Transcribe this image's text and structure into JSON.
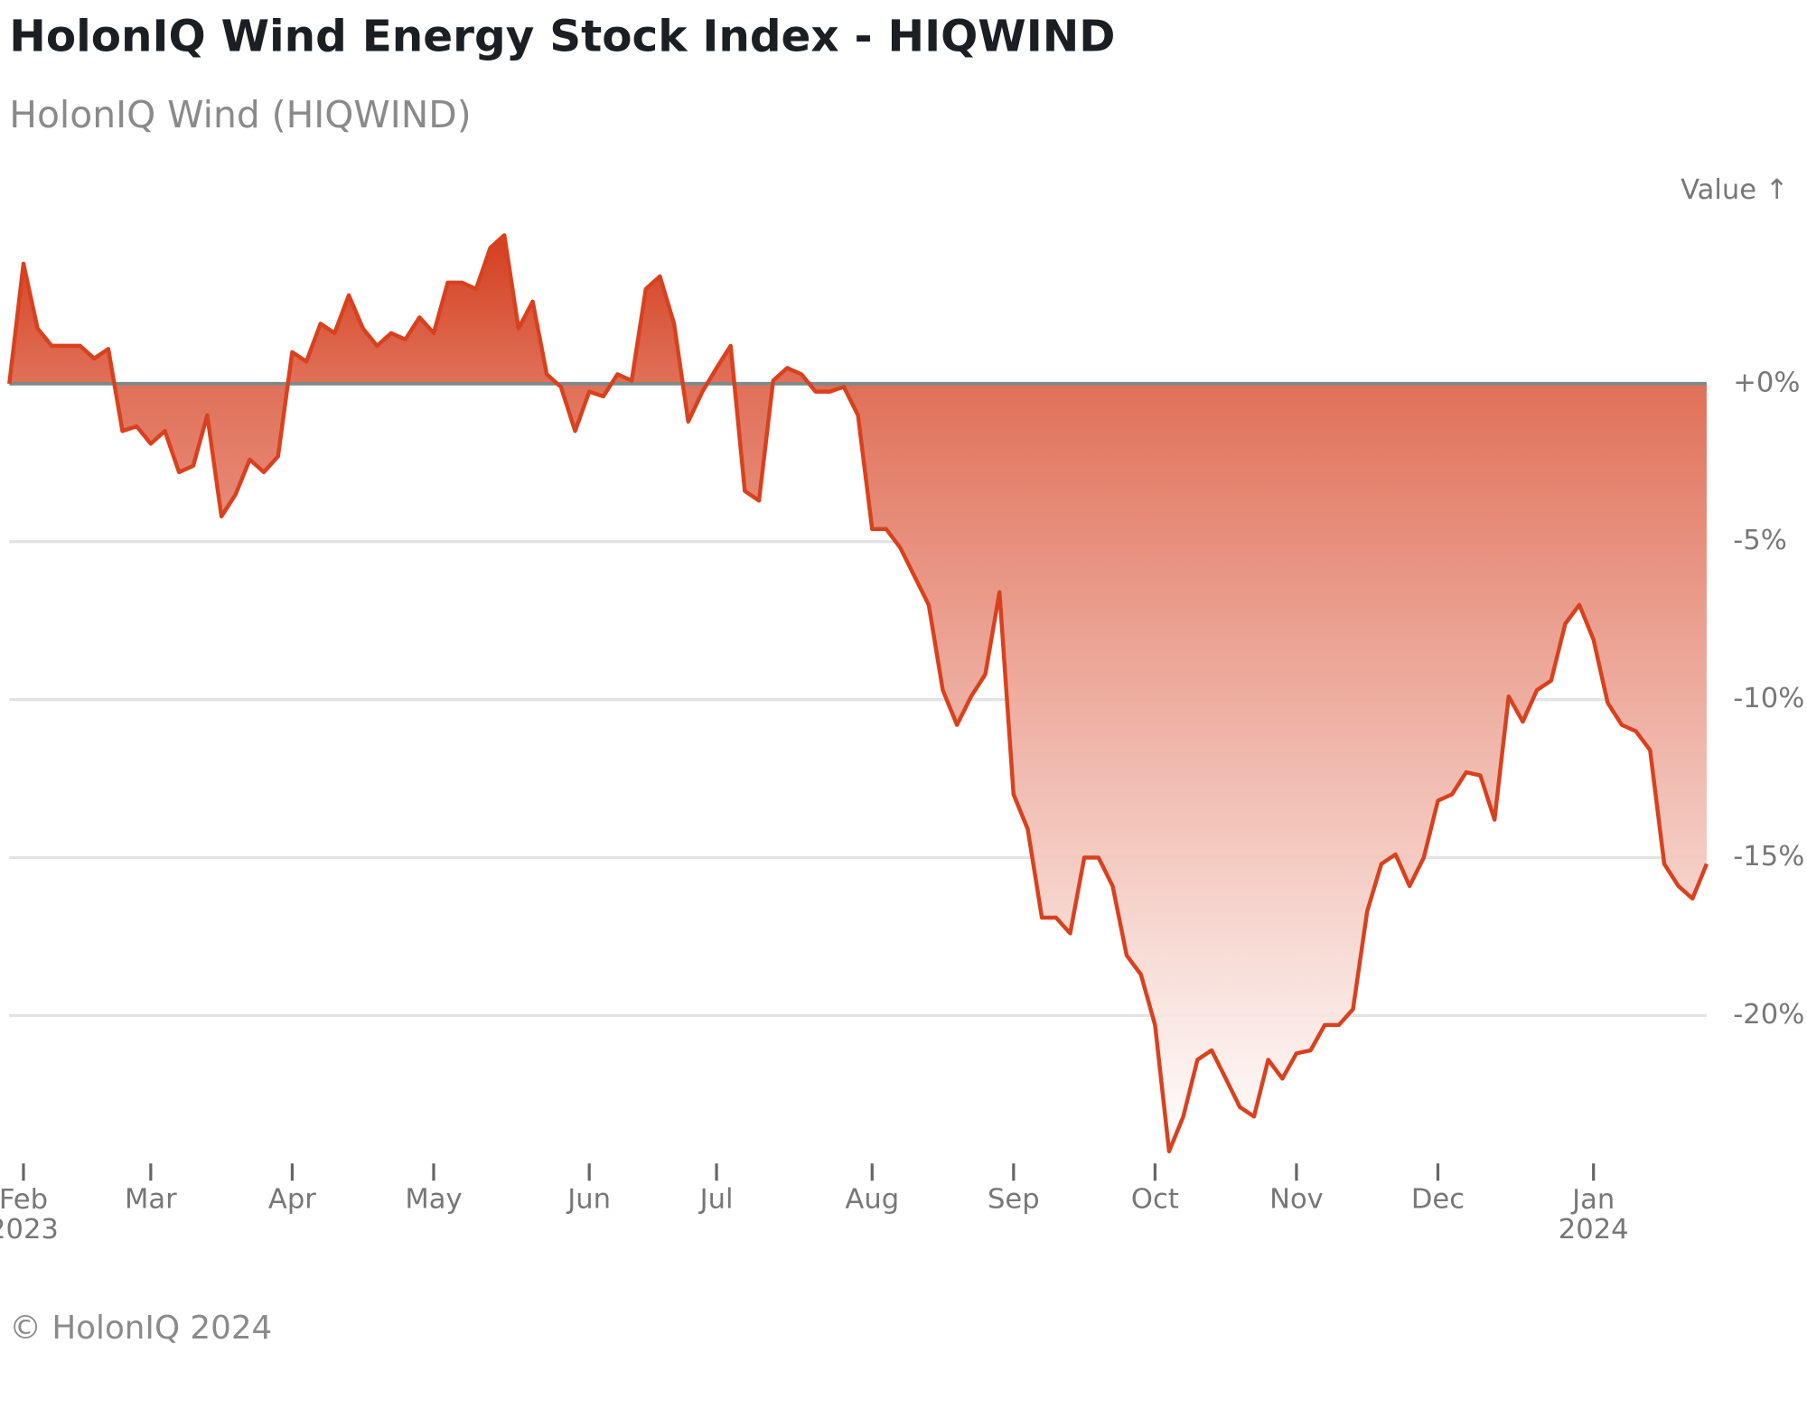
{
  "chart_data": {
    "type": "area",
    "title": "HolonIQ Wind Energy Stock Index - HIQWIND",
    "subtitle": "HolonIQ Wind (HIQWIND)",
    "y_label": "Value ↑",
    "footer": "© HolonIQ 2024",
    "color": "#d9411e",
    "zero_line_color": "#7d8a8a",
    "grid": true,
    "ylim": [
      -24.5,
      5.2
    ],
    "yticks": [
      {
        "value": 0,
        "label": "+0%"
      },
      {
        "value": -5,
        "label": "-5%"
      },
      {
        "value": -10,
        "label": "-10%"
      },
      {
        "value": -15,
        "label": "-15%"
      },
      {
        "value": -20,
        "label": "-20%"
      }
    ],
    "categories": [
      null,
      "Feb 2023",
      null,
      null,
      null,
      null,
      null,
      null,
      null,
      null,
      "Mar",
      null,
      null,
      null,
      null,
      null,
      null,
      null,
      null,
      null,
      "Apr",
      null,
      null,
      null,
      null,
      null,
      null,
      null,
      null,
      null,
      "May",
      null,
      null,
      null,
      null,
      null,
      null,
      null,
      null,
      null,
      null,
      "Jun",
      null,
      null,
      null,
      null,
      null,
      null,
      null,
      null,
      "Jul",
      null,
      null,
      null,
      null,
      null,
      null,
      null,
      null,
      null,
      null,
      "Aug",
      null,
      null,
      null,
      null,
      null,
      null,
      null,
      null,
      null,
      "Sep",
      null,
      null,
      null,
      null,
      null,
      null,
      null,
      null,
      null,
      "Oct",
      null,
      null,
      null,
      null,
      null,
      null,
      null,
      null,
      null,
      "Nov",
      null,
      null,
      null,
      null,
      null,
      null,
      null,
      null,
      null,
      "Dec",
      null,
      null,
      null,
      null,
      null,
      null,
      null,
      null,
      null,
      null,
      "Jan 2024",
      null,
      null,
      null,
      null,
      null,
      null,
      null,
      null
    ],
    "values": [
      0,
      3.8,
      1.75,
      1.2,
      1.2,
      1.2,
      0.8,
      1.1,
      -1.5,
      -1.35,
      -1.9,
      -1.5,
      -2.8,
      -2.6,
      -1.0,
      -4.2,
      -3.5,
      -2.4,
      -2.8,
      -2.3,
      1.0,
      0.7,
      1.9,
      1.6,
      2.8,
      1.75,
      1.2,
      1.6,
      1.4,
      2.1,
      1.6,
      3.2,
      3.2,
      3.0,
      4.3,
      4.7,
      1.75,
      2.6,
      0.3,
      -0.1,
      -1.5,
      -0.25,
      -0.4,
      0.3,
      0.1,
      3.0,
      3.4,
      1.9,
      -1.2,
      -0.25,
      0.5,
      1.2,
      -3.4,
      -3.7,
      0.1,
      0.5,
      0.3,
      -0.25,
      -0.25,
      -0.1,
      -1.0,
      -4.6,
      -4.6,
      -5.2,
      -6.1,
      -7.0,
      -9.7,
      -10.8,
      -9.9,
      -9.2,
      -6.6,
      -13.0,
      -14.1,
      -16.9,
      -16.9,
      -17.4,
      -15.0,
      -15.0,
      -15.9,
      -18.1,
      -18.7,
      -20.3,
      -24.3,
      -23.2,
      -21.4,
      -21.1,
      -22.0,
      -22.9,
      -23.2,
      -21.4,
      -22.0,
      -21.2,
      -21.1,
      -20.3,
      -20.3,
      -19.8,
      -16.7,
      -15.2,
      -14.9,
      -15.9,
      -15.0,
      -13.2,
      -13.0,
      -12.3,
      -12.4,
      -13.8,
      -9.9,
      -10.7,
      -9.7,
      -9.4,
      -7.6,
      -7.0,
      -8.1,
      -10.1,
      -10.8,
      -11.0,
      -11.6,
      -15.2,
      -15.9,
      -16.3,
      -15.2
    ]
  }
}
